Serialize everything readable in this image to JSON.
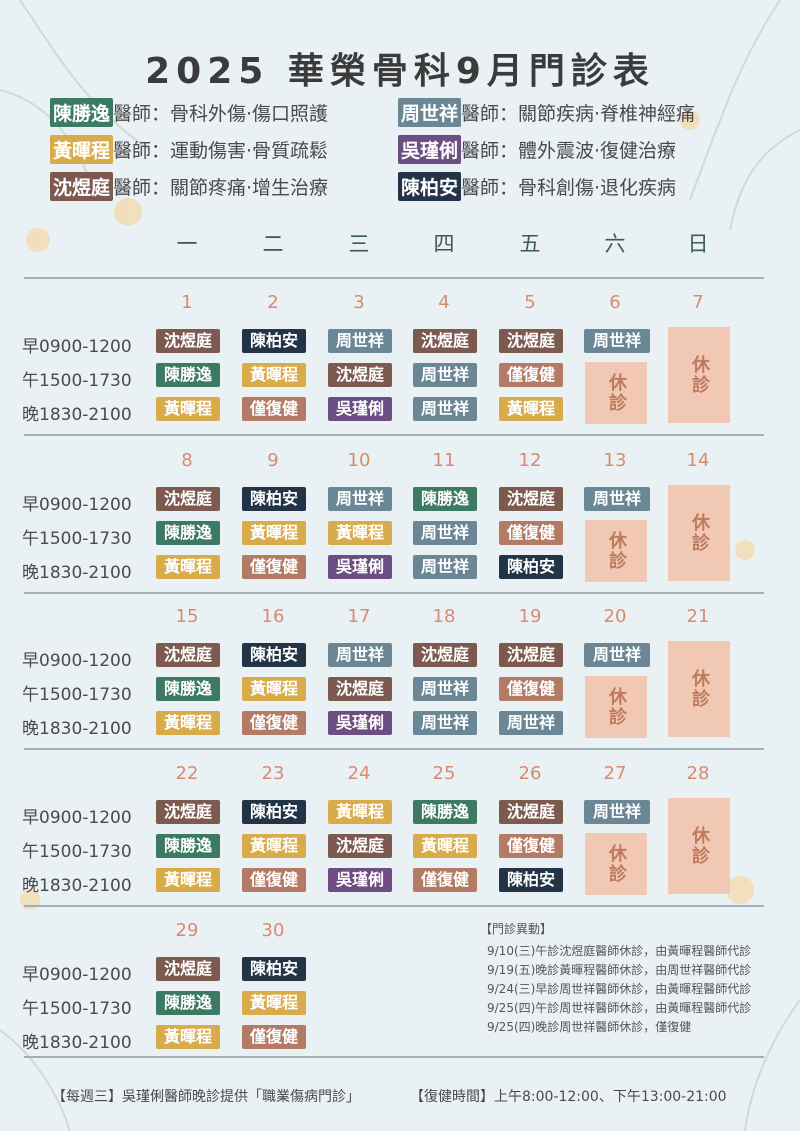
{
  "title": "2025 華榮骨科9月門診表",
  "doctors": [
    {
      "name": "陳勝逸",
      "text": "醫師：骨科外傷‧傷口照護",
      "color": "#3d7a63"
    },
    {
      "name": "周世祥",
      "text": "醫師：關節疾病‧脊椎神經痛",
      "color": "#6b8796"
    },
    {
      "name": "黃暉程",
      "text": "醫師：運動傷害‧骨質疏鬆",
      "color": "#d9ac4b"
    },
    {
      "name": "吳瑾俐",
      "text": "醫師：體外震波‧復健治療",
      "color": "#6d4e82"
    },
    {
      "name": "沈煜庭",
      "text": "醫師：關節疼痛‧增生治療",
      "color": "#7c5a4f"
    },
    {
      "name": "陳柏安",
      "text": "醫師：骨科創傷‧退化疾病",
      "color": "#233447"
    }
  ],
  "weekdays": [
    "一",
    "二",
    "三",
    "四",
    "五",
    "六",
    "日"
  ],
  "slots": [
    "早0900-1200",
    "午1500-1730",
    "晚1830-2100"
  ],
  "rest_label": "休診",
  "weeks": [
    {
      "dates": [
        "1",
        "2",
        "3",
        "4",
        "5",
        "6",
        "7"
      ],
      "cells": [
        [
          "沈煜庭",
          "陳勝逸",
          "黃暉程"
        ],
        [
          "陳柏安",
          "黃暉程",
          "僅復健"
        ],
        [
          "周世祥",
          "沈煜庭",
          "吳瑾俐"
        ],
        [
          "沈煜庭",
          "周世祥",
          "周世祥"
        ],
        [
          "沈煜庭",
          "僅復健",
          "黃暉程"
        ],
        [
          "周世祥"
        ]
      ]
    },
    {
      "dates": [
        "8",
        "9",
        "10",
        "11",
        "12",
        "13",
        "14"
      ],
      "cells": [
        [
          "沈煜庭",
          "陳勝逸",
          "黃暉程"
        ],
        [
          "陳柏安",
          "黃暉程",
          "僅復健"
        ],
        [
          "周世祥",
          "黃暉程",
          "吳瑾俐"
        ],
        [
          "陳勝逸",
          "周世祥",
          "周世祥"
        ],
        [
          "沈煜庭",
          "僅復健",
          "陳柏安"
        ],
        [
          "周世祥"
        ]
      ]
    },
    {
      "dates": [
        "15",
        "16",
        "17",
        "18",
        "19",
        "20",
        "21"
      ],
      "cells": [
        [
          "沈煜庭",
          "陳勝逸",
          "黃暉程"
        ],
        [
          "陳柏安",
          "黃暉程",
          "僅復健"
        ],
        [
          "周世祥",
          "沈煜庭",
          "吳瑾俐"
        ],
        [
          "沈煜庭",
          "周世祥",
          "周世祥"
        ],
        [
          "沈煜庭",
          "僅復健",
          "周世祥"
        ],
        [
          "周世祥"
        ]
      ]
    },
    {
      "dates": [
        "22",
        "23",
        "24",
        "25",
        "26",
        "27",
        "28"
      ],
      "cells": [
        [
          "沈煜庭",
          "陳勝逸",
          "黃暉程"
        ],
        [
          "陳柏安",
          "黃暉程",
          "僅復健"
        ],
        [
          "黃暉程",
          "沈煜庭",
          "吳瑾俐"
        ],
        [
          "陳勝逸",
          "黃暉程",
          "僅復健"
        ],
        [
          "沈煜庭",
          "僅復健",
          "陳柏安"
        ],
        [
          "周世祥"
        ]
      ]
    },
    {
      "dates": [
        "29",
        "30"
      ],
      "cells": [
        [
          "沈煜庭",
          "陳勝逸",
          "黃暉程"
        ],
        [
          "陳柏安",
          "黃暉程",
          "僅復健"
        ]
      ]
    }
  ],
  "changes": {
    "heading": "【門診異動】",
    "items": [
      "9/10(三)午診沈煜庭醫師休診，由黃暉程醫師代診",
      "9/19(五)晚診黃暉程醫師休診，由周世祥醫師代診",
      "9/24(三)早診周世祥醫師休診，由黃暉程醫師代診",
      "9/25(四)午診周世祥醫師休診，由黃暉程醫師代診",
      "9/25(四)晚診周世祥醫師休診，僅復健"
    ]
  },
  "footer": {
    "left": "【每週三】吳瑾俐醫師晚診提供「職業傷病門診」",
    "right": "【復健時間】上午8:00-12:00、下午13:00-21:00"
  },
  "colors": {
    "陳勝逸": "#3d7a63",
    "黃暉程": "#d9ac4b",
    "沈煜庭": "#7c5a4f",
    "周世祥": "#6b8796",
    "吳瑾俐": "#6d4e82",
    "陳柏安": "#233447",
    "僅復健": "#b37a66"
  }
}
